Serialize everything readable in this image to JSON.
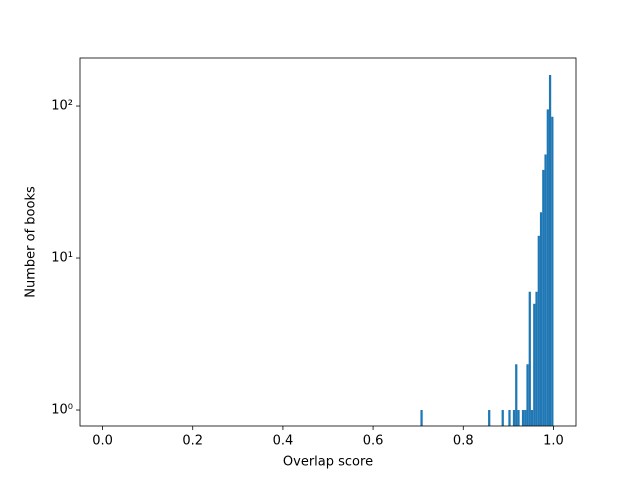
{
  "chart_data": {
    "type": "histogram",
    "x_label": "Overlap score",
    "y_label": "Number of books",
    "color": "#1f77b4",
    "log_y": true,
    "bins": [
      0.0,
      0.005,
      0.01,
      0.015,
      0.02,
      0.025,
      0.03,
      0.035,
      0.04,
      0.045,
      0.05,
      0.055,
      0.06,
      0.065,
      0.07,
      0.075,
      0.08,
      0.085,
      0.09,
      0.095,
      0.1,
      0.105,
      0.11,
      0.115,
      0.12,
      0.125,
      0.13,
      0.135,
      0.14,
      0.145,
      0.15,
      0.155,
      0.16,
      0.165,
      0.17,
      0.175,
      0.18,
      0.185,
      0.19,
      0.195,
      0.2,
      0.205,
      0.21,
      0.215,
      0.22,
      0.225,
      0.23,
      0.235,
      0.24,
      0.245,
      0.25,
      0.255,
      0.26,
      0.265,
      0.27,
      0.275,
      0.28,
      0.285,
      0.29,
      0.295,
      0.3,
      0.305,
      0.31,
      0.315,
      0.32,
      0.325,
      0.33,
      0.335,
      0.34,
      0.345,
      0.35,
      0.355,
      0.36,
      0.365,
      0.37,
      0.375,
      0.38,
      0.385,
      0.39,
      0.395,
      0.4,
      0.405,
      0.41,
      0.415,
      0.42,
      0.425,
      0.43,
      0.435,
      0.44,
      0.445,
      0.45,
      0.455,
      0.46,
      0.465,
      0.47,
      0.475,
      0.48,
      0.485,
      0.49,
      0.495,
      0.5,
      0.505,
      0.51,
      0.515,
      0.52,
      0.525,
      0.53,
      0.535,
      0.54,
      0.545,
      0.55,
      0.555,
      0.56,
      0.565,
      0.57,
      0.575,
      0.58,
      0.585,
      0.59,
      0.595,
      0.6,
      0.605,
      0.61,
      0.615,
      0.62,
      0.625,
      0.63,
      0.635,
      0.64,
      0.645,
      0.65,
      0.655,
      0.66,
      0.665,
      0.67,
      0.675,
      0.68,
      0.685,
      0.69,
      0.695,
      0.7,
      0.705,
      0.71,
      0.715,
      0.72,
      0.725,
      0.73,
      0.735,
      0.74,
      0.745,
      0.75,
      0.755,
      0.76,
      0.765,
      0.77,
      0.775,
      0.78,
      0.785,
      0.79,
      0.795,
      0.8,
      0.805,
      0.81,
      0.815,
      0.82,
      0.825,
      0.83,
      0.835,
      0.84,
      0.845,
      0.85,
      0.855,
      0.86,
      0.865,
      0.87,
      0.875,
      0.88,
      0.885,
      0.89,
      0.895,
      0.9,
      0.905,
      0.91,
      0.915,
      0.92,
      0.925,
      0.93,
      0.935,
      0.94,
      0.945,
      0.95,
      0.955,
      0.96,
      0.965,
      0.97,
      0.975,
      0.98,
      0.985,
      0.99,
      0.995,
      1.0
    ],
    "counts": [
      0,
      0,
      0,
      0,
      0,
      0,
      0,
      0,
      0,
      0,
      0,
      0,
      0,
      0,
      0,
      0,
      0,
      0,
      0,
      0,
      0,
      0,
      0,
      0,
      0,
      0,
      0,
      0,
      0,
      0,
      0,
      0,
      0,
      0,
      0,
      0,
      0,
      0,
      0,
      0,
      0,
      0,
      0,
      0,
      0,
      0,
      0,
      0,
      0,
      0,
      0,
      0,
      0,
      0,
      0,
      0,
      0,
      0,
      0,
      0,
      0,
      0,
      0,
      0,
      0,
      0,
      0,
      0,
      0,
      0,
      0,
      0,
      0,
      0,
      0,
      0,
      0,
      0,
      0,
      0,
      0,
      0,
      0,
      0,
      0,
      0,
      0,
      0,
      0,
      0,
      0,
      0,
      0,
      0,
      0,
      0,
      0,
      0,
      0,
      0,
      0,
      0,
      0,
      0,
      0,
      0,
      0,
      0,
      0,
      0,
      0,
      0,
      0,
      0,
      0,
      0,
      0,
      0,
      0,
      0,
      0,
      0,
      0,
      0,
      0,
      0,
      0,
      0,
      0,
      0,
      0,
      0,
      0,
      0,
      0,
      0,
      0,
      0,
      0,
      0,
      0,
      1,
      0,
      0,
      0,
      0,
      0,
      0,
      0,
      0,
      0,
      0,
      0,
      0,
      0,
      0,
      0,
      0,
      0,
      0,
      0,
      0,
      0,
      0,
      0,
      0,
      0,
      0,
      0,
      0,
      0,
      1,
      0,
      0,
      0,
      0,
      0,
      1,
      0,
      0,
      1,
      0,
      1,
      2,
      1,
      0,
      1,
      1,
      2,
      6,
      1,
      5,
      6,
      14,
      20,
      38,
      48,
      95,
      160,
      85
    ],
    "xlim": [
      -0.05,
      1.05
    ],
    "xticks": [
      {
        "value": 0,
        "label": "0.0"
      },
      0.2,
      0.4,
      0.6,
      0.8,
      {
        "value": 1,
        "label": "1.0"
      }
    ],
    "ylim": [
      0.785,
      207
    ],
    "yticks": [
      {
        "value": 1,
        "label": "10⁰"
      },
      {
        "value": 10,
        "label": "10¹"
      },
      {
        "value": 100,
        "label": "10²"
      }
    ]
  }
}
